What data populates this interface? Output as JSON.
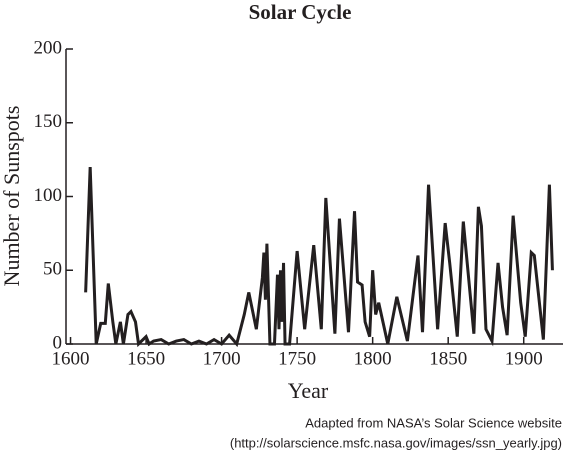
{
  "chart_data": {
    "type": "line",
    "title": "Solar Cycle",
    "x_label": "Year",
    "y_label": "Number of Sunspots",
    "source": [
      "Adapted from NASA’s Solar Science website",
      "(http://solarscience.msfc.nasa.gov/images/ssn_yearly.jpg)"
    ],
    "x": [
      1610,
      1613,
      1617,
      1620,
      1623,
      1625,
      1628,
      1630,
      1633,
      1635,
      1638,
      1640,
      1643,
      1645,
      1650,
      1652,
      1655,
      1660,
      1665,
      1670,
      1675,
      1680,
      1685,
      1690,
      1695,
      1700,
      1705,
      1710,
      1715,
      1718,
      1723,
      1727,
      1728,
      1729,
      1730,
      1732,
      1735,
      1737,
      1738,
      1739,
      1740,
      1741,
      1742,
      1745,
      1750,
      1755,
      1761,
      1766,
      1769,
      1775,
      1778,
      1784,
      1788,
      1790,
      1793,
      1795,
      1798,
      1800,
      1802,
      1804,
      1810,
      1816,
      1823,
      1830,
      1833,
      1837,
      1843,
      1848,
      1851,
      1856,
      1860,
      1867,
      1870,
      1872,
      1875,
      1879,
      1883,
      1886,
      1889,
      1893,
      1898,
      1901,
      1905,
      1907,
      1913,
      1917,
      1919
    ],
    "values": [
      35,
      120,
      0,
      14,
      14,
      41,
      15,
      0,
      15,
      0,
      20,
      22,
      15,
      0,
      5,
      0,
      2,
      3,
      0,
      2,
      3,
      0,
      2,
      0,
      3,
      0,
      6,
      0,
      20,
      35,
      10,
      45,
      62,
      30,
      68,
      0,
      0,
      47,
      10,
      50,
      15,
      55,
      0,
      0,
      63,
      10,
      67,
      10,
      99,
      7,
      85,
      8,
      90,
      42,
      40,
      15,
      5,
      50,
      20,
      28,
      0,
      32,
      2,
      60,
      8,
      108,
      10,
      82,
      55,
      5,
      83,
      7,
      93,
      80,
      10,
      2,
      55,
      25,
      6,
      87,
      28,
      5,
      62,
      60,
      3,
      108,
      50
    ],
    "color": "#231f20",
    "xlim": [
      1597,
      1926
    ],
    "ylim": [
      0,
      200
    ],
    "xticks": [
      1600,
      1650,
      1700,
      1750,
      1800,
      1850,
      1900
    ],
    "yticks": [
      0,
      50,
      100,
      150,
      200
    ]
  }
}
